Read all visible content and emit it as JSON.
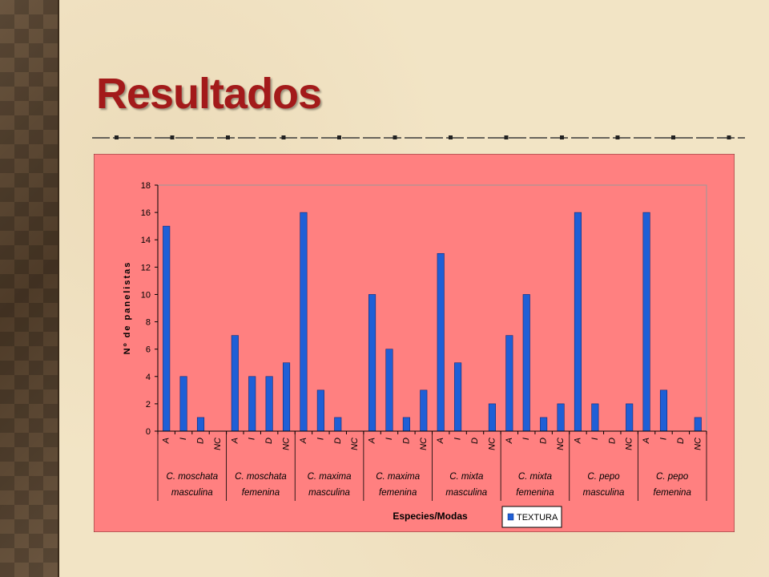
{
  "slide": {
    "title": "Resultados"
  },
  "colors": {
    "title": "#a31a1a",
    "chart_bg": "#ff8080",
    "plot_bg": "#ff8080",
    "bar": "#1f5fd6",
    "bar_edge": "#0a2a7a"
  },
  "chart_data": {
    "type": "bar",
    "title": "",
    "xlabel": "Especies/Modas",
    "ylabel": "Nº de panelistas",
    "ylim": [
      0,
      18
    ],
    "yticks": [
      0,
      2,
      4,
      6,
      8,
      10,
      12,
      14,
      16,
      18
    ],
    "legend": {
      "placement": "bottom",
      "entries": [
        "TEXTURA"
      ]
    },
    "grid": false,
    "modes": [
      "A",
      "I",
      "D",
      "NC"
    ],
    "groups": [
      {
        "line1": "C. moschata",
        "line2": "masculina"
      },
      {
        "line1": "C. moschata",
        "line2": "femenina"
      },
      {
        "line1": "C. maxima",
        "line2": "masculina"
      },
      {
        "line1": "C. maxima",
        "line2": "femenina"
      },
      {
        "line1": "C. mixta",
        "line2": "masculina"
      },
      {
        "line1": "C. mixta",
        "line2": "femenina"
      },
      {
        "line1": "C. pepo",
        "line2": "masculina"
      },
      {
        "line1": "C. pepo",
        "line2": "femenina"
      }
    ],
    "series": [
      {
        "name": "TEXTURA",
        "values": [
          15,
          4,
          1,
          0,
          7,
          4,
          4,
          5,
          16,
          3,
          1,
          0,
          10,
          6,
          1,
          3,
          13,
          5,
          0,
          2,
          7,
          10,
          1,
          2,
          16,
          2,
          0,
          2,
          16,
          3,
          0,
          1
        ]
      }
    ]
  }
}
